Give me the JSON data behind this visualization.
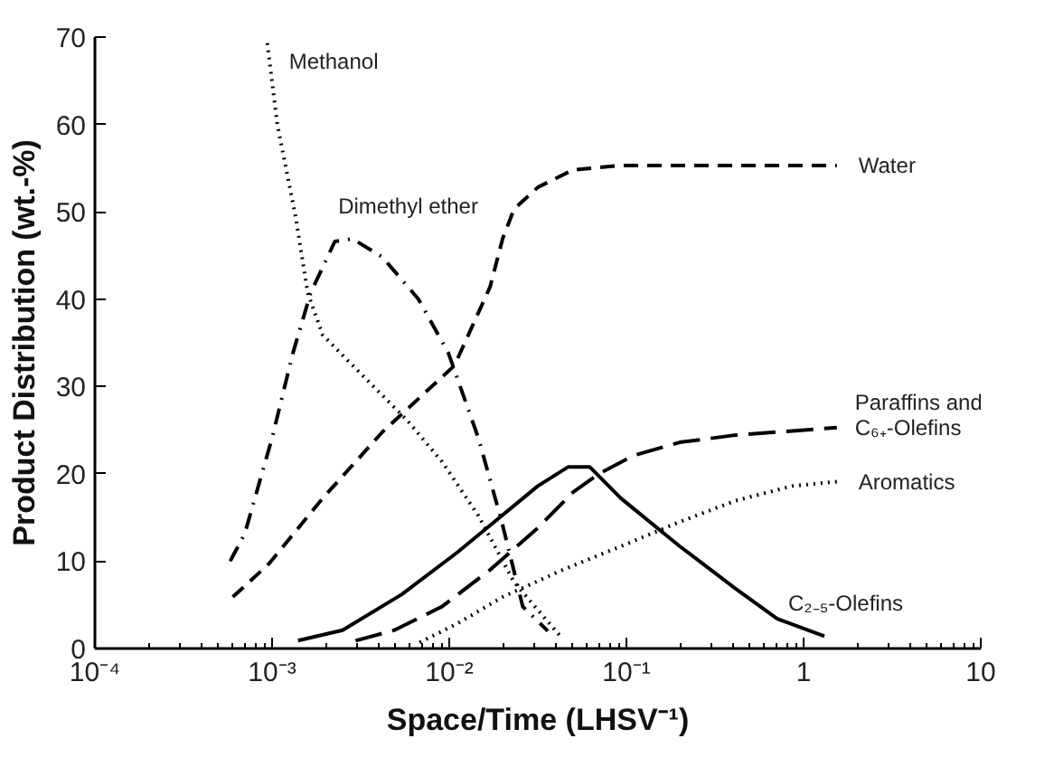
{
  "chart_data": {
    "type": "line",
    "xlabel": "Space/Time (LHSV⁻¹)",
    "ylabel": "Product Distribution (wt.-%)",
    "log": "x",
    "grid": false,
    "marker": "none",
    "xlim": [
      0.0001,
      10
    ],
    "ylim": [
      0,
      70
    ],
    "xticks": [
      {
        "value": 0.0001,
        "label": "10⁻⁴"
      },
      {
        "value": 0.001,
        "label": "10⁻³"
      },
      {
        "value": 0.01,
        "label": "10⁻²"
      },
      {
        "value": 0.1,
        "label": "10⁻¹"
      },
      1,
      10
    ],
    "yticks": [
      0,
      10,
      20,
      30,
      40,
      50,
      60,
      70
    ],
    "series": [
      {
        "name": "Methanol",
        "color": "#000000",
        "line_style": "dotted",
        "x": [
          0.00094,
          0.00107,
          0.00135,
          0.00159,
          0.00193,
          0.00285,
          0.00574,
          0.0091,
          0.0146,
          0.0232,
          0.042
        ],
        "values": [
          69.3,
          60,
          49.7,
          40.7,
          35.9,
          32.4,
          26.2,
          21.4,
          15.2,
          7.6,
          1.5
        ]
      },
      {
        "name": "Dimethyl ether",
        "color": "#000000",
        "line_style": "dashdot",
        "x": [
          0.00058,
          0.0007,
          0.001,
          0.00131,
          0.00165,
          0.00226,
          0.00285,
          0.0042,
          0.0067,
          0.0099,
          0.0146,
          0.0198,
          0.026,
          0.036
        ],
        "values": [
          10,
          13.1,
          24.1,
          33.8,
          40.7,
          46.6,
          46.9,
          44.8,
          40,
          33.8,
          24.1,
          14.5,
          4.8,
          2
        ]
      },
      {
        "name": "Water",
        "color": "#000000",
        "line_style": "dashed",
        "x": [
          0.0006,
          0.00096,
          0.00193,
          0.0042,
          0.0107,
          0.017,
          0.02,
          0.0232,
          0.0316,
          0.05,
          0.093,
          1.54
        ],
        "values": [
          5.9,
          9.7,
          17.2,
          24.8,
          32.4,
          41.4,
          46.9,
          50.3,
          52.8,
          54.8,
          55.3,
          55.3
        ]
      },
      {
        "name": "Paraffins and\nC₆₊-Olefins",
        "color": "#000000",
        "line_style": "longdash",
        "x": [
          0.00296,
          0.0049,
          0.0091,
          0.017,
          0.0316,
          0.05,
          0.07,
          0.11,
          0.2,
          0.4,
          1.54
        ],
        "values": [
          0.9,
          2.1,
          4.8,
          9,
          13.8,
          17.9,
          20,
          22.1,
          23.6,
          24.4,
          25.3
        ]
      },
      {
        "name": "Aromatics",
        "color": "#000000",
        "line_style": "dotted",
        "x": [
          0.0068,
          0.011,
          0.02,
          0.0436,
          0.093,
          0.2,
          0.41,
          0.86,
          1.54
        ],
        "values": [
          0.7,
          2.8,
          5.9,
          9,
          11.7,
          14.5,
          16.9,
          18.6,
          19.1
        ]
      },
      {
        "name": "C₂₋₅-Olefins",
        "color": "#000000",
        "line_style": "solid",
        "x": [
          0.0014,
          0.0025,
          0.0054,
          0.0111,
          0.0316,
          0.047,
          0.062,
          0.093,
          0.2,
          0.41,
          0.71,
          1.31
        ],
        "values": [
          0.9,
          2.1,
          6.2,
          11,
          18.6,
          20.8,
          20.8,
          17.2,
          11.7,
          6.9,
          3.4,
          1.4
        ]
      }
    ]
  }
}
